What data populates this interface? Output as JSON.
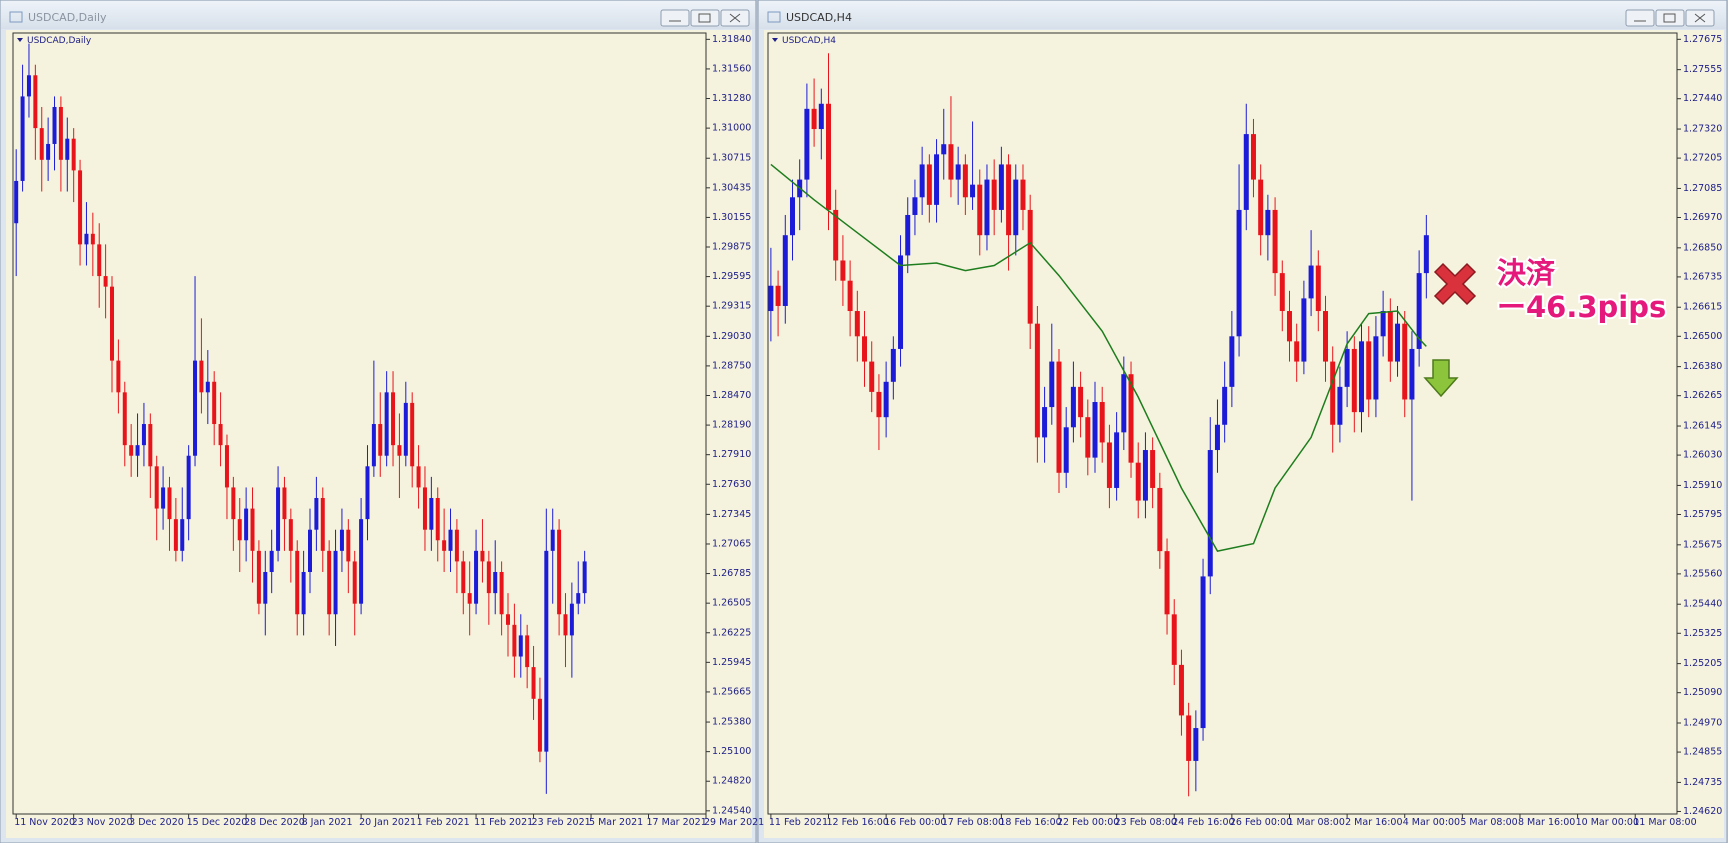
{
  "windows": [
    {
      "title": "USDCAD,Daily"
    },
    {
      "title": "USDCAD,H4"
    }
  ],
  "chart_data": [
    {
      "type": "candlestick",
      "title": "USDCAD,Daily",
      "up_color": "#1b1bd8",
      "down_color": "#e8141c",
      "open": [
        1.301,
        1.305,
        1.313,
        1.315,
        1.31,
        1.307,
        1.3085,
        1.312,
        1.307,
        1.309,
        1.306,
        1.299,
        1.3,
        1.299,
        1.296,
        1.295,
        1.288,
        1.285,
        1.28,
        1.279,
        1.28,
        1.282,
        1.278,
        1.274,
        1.276,
        1.273,
        1.27,
        1.273,
        1.279,
        1.288,
        1.285,
        1.286,
        1.282,
        1.28,
        1.276,
        1.273,
        1.271,
        1.274,
        1.27,
        1.265,
        1.268,
        1.27,
        1.276,
        1.273,
        1.27,
        1.264,
        1.268,
        1.272,
        1.275,
        1.27,
        1.264,
        1.27,
        1.272,
        1.269,
        1.265,
        1.273,
        1.278,
        1.282,
        1.279,
        1.285,
        1.28,
        1.279,
        1.284,
        1.278,
        1.276,
        1.272,
        1.275,
        1.271,
        1.27,
        1.272,
        1.269,
        1.266,
        1.265,
        1.27,
        1.269,
        1.266,
        1.268,
        1.264,
        1.263,
        1.26,
        1.262,
        1.259,
        1.256,
        1.251,
        1.27,
        1.272,
        1.264,
        1.262,
        1.265,
        1.266
      ],
      "high": [
        1.308,
        1.316,
        1.318,
        1.316,
        1.312,
        1.311,
        1.313,
        1.313,
        1.311,
        1.31,
        1.307,
        1.303,
        1.302,
        1.301,
        1.299,
        1.296,
        1.29,
        1.286,
        1.282,
        1.283,
        1.284,
        1.283,
        1.279,
        1.278,
        1.277,
        1.275,
        1.276,
        1.28,
        1.296,
        1.292,
        1.289,
        1.287,
        1.285,
        1.281,
        1.277,
        1.275,
        1.276,
        1.276,
        1.271,
        1.27,
        1.272,
        1.278,
        1.277,
        1.274,
        1.271,
        1.27,
        1.274,
        1.277,
        1.276,
        1.271,
        1.272,
        1.274,
        1.273,
        1.27,
        1.275,
        1.28,
        1.288,
        1.285,
        1.287,
        1.287,
        1.283,
        1.286,
        1.285,
        1.28,
        1.278,
        1.277,
        1.276,
        1.274,
        1.274,
        1.273,
        1.27,
        1.269,
        1.272,
        1.273,
        1.27,
        1.271,
        1.269,
        1.266,
        1.265,
        1.264,
        1.263,
        1.261,
        1.258,
        1.274,
        1.274,
        1.273,
        1.266,
        1.267,
        1.269,
        1.27
      ],
      "low": [
        1.296,
        1.304,
        1.311,
        1.307,
        1.304,
        1.305,
        1.306,
        1.304,
        1.304,
        1.303,
        1.297,
        1.297,
        1.296,
        1.293,
        1.292,
        1.285,
        1.283,
        1.278,
        1.277,
        1.277,
        1.278,
        1.275,
        1.271,
        1.272,
        1.27,
        1.269,
        1.269,
        1.271,
        1.278,
        1.283,
        1.282,
        1.28,
        1.278,
        1.273,
        1.27,
        1.268,
        1.269,
        1.267,
        1.264,
        1.262,
        1.266,
        1.269,
        1.27,
        1.267,
        1.262,
        1.262,
        1.266,
        1.27,
        1.268,
        1.262,
        1.261,
        1.268,
        1.266,
        1.262,
        1.264,
        1.271,
        1.277,
        1.277,
        1.278,
        1.278,
        1.275,
        1.278,
        1.276,
        1.274,
        1.27,
        1.27,
        1.269,
        1.268,
        1.268,
        1.266,
        1.264,
        1.262,
        1.264,
        1.267,
        1.263,
        1.264,
        1.262,
        1.26,
        1.258,
        1.258,
        1.257,
        1.254,
        1.25,
        1.247,
        1.265,
        1.262,
        1.259,
        1.258,
        1.264,
        1.265
      ],
      "close": [
        1.305,
        1.313,
        1.315,
        1.31,
        1.307,
        1.3085,
        1.312,
        1.307,
        1.309,
        1.306,
        1.299,
        1.3,
        1.299,
        1.296,
        1.295,
        1.288,
        1.285,
        1.28,
        1.279,
        1.28,
        1.282,
        1.278,
        1.274,
        1.276,
        1.273,
        1.27,
        1.273,
        1.279,
        1.288,
        1.285,
        1.286,
        1.282,
        1.28,
        1.276,
        1.273,
        1.271,
        1.274,
        1.27,
        1.265,
        1.268,
        1.27,
        1.276,
        1.273,
        1.27,
        1.264,
        1.268,
        1.272,
        1.275,
        1.27,
        1.264,
        1.27,
        1.272,
        1.269,
        1.265,
        1.273,
        1.278,
        1.282,
        1.279,
        1.285,
        1.28,
        1.279,
        1.284,
        1.278,
        1.276,
        1.272,
        1.275,
        1.271,
        1.27,
        1.272,
        1.269,
        1.266,
        1.265,
        1.27,
        1.269,
        1.266,
        1.268,
        1.264,
        1.263,
        1.26,
        1.262,
        1.259,
        1.256,
        1.251,
        1.27,
        1.272,
        1.264,
        1.262,
        1.265,
        1.266,
        1.269
      ],
      "ylim": [
        1.2451,
        1.319
      ],
      "yticks": [
        {
          "value": 1.3184,
          "label": "1.31840"
        },
        {
          "value": 1.3156,
          "label": "1.31560"
        },
        {
          "value": 1.3128,
          "label": "1.31280"
        },
        {
          "value": 1.31,
          "label": "1.31000"
        },
        {
          "value": 1.30715,
          "label": "1.30715"
        },
        {
          "value": 1.30435,
          "label": "1.30435"
        },
        {
          "value": 1.30155,
          "label": "1.30155"
        },
        {
          "value": 1.29875,
          "label": "1.29875"
        },
        {
          "value": 1.29595,
          "label": "1.29595"
        },
        {
          "value": 1.29315,
          "label": "1.29315"
        },
        {
          "value": 1.2903,
          "label": "1.29030"
        },
        {
          "value": 1.2875,
          "label": "1.28750"
        },
        {
          "value": 1.2847,
          "label": "1.28470"
        },
        {
          "value": 1.2819,
          "label": "1.28190"
        },
        {
          "value": 1.2791,
          "label": "1.27910"
        },
        {
          "value": 1.2763,
          "label": "1.27630"
        },
        {
          "value": 1.27345,
          "label": "1.27345"
        },
        {
          "value": 1.27065,
          "label": "1.27065"
        },
        {
          "value": 1.26785,
          "label": "1.26785"
        },
        {
          "value": 1.26505,
          "label": "1.26505"
        },
        {
          "value": 1.26225,
          "label": "1.26225"
        },
        {
          "value": 1.25945,
          "label": "1.25945"
        },
        {
          "value": 1.25665,
          "label": "1.25665"
        },
        {
          "value": 1.2538,
          "label": "1.25380"
        },
        {
          "value": 1.251,
          "label": "1.25100"
        },
        {
          "value": 1.2482,
          "label": "1.24820"
        },
        {
          "value": 1.2454,
          "label": "1.24540"
        }
      ],
      "xlim": [
        -0.5,
        108
      ],
      "xticks": [
        {
          "value": 0,
          "label": "11 Nov 2020"
        },
        {
          "value": 9,
          "label": "23 Nov 2020"
        },
        {
          "value": 18,
          "label": "3 Dec 2020"
        },
        {
          "value": 27,
          "label": "15 Dec 2020"
        },
        {
          "value": 36,
          "label": "28 Dec 2020"
        },
        {
          "value": 45,
          "label": "8 Jan 2021"
        },
        {
          "value": 54,
          "label": "20 Jan 2021"
        },
        {
          "value": 63,
          "label": "1 Feb 2021"
        },
        {
          "value": 72,
          "label": "11 Feb 2021"
        },
        {
          "value": 81,
          "label": "23 Feb 2021"
        },
        {
          "value": 90,
          "label": "5 Mar 2021"
        },
        {
          "value": 99,
          "label": "17 Mar 2021"
        },
        {
          "value": 108,
          "label": "29 Mar 2021"
        }
      ]
    },
    {
      "type": "candlestick",
      "title": "USDCAD,H4",
      "up_color": "#1b1bd8",
      "down_color": "#e8141c",
      "open": [
        1.266,
        1.267,
        1.2662,
        1.269,
        1.2705,
        1.2712,
        1.274,
        1.2732,
        1.2742,
        1.27,
        1.268,
        1.2672,
        1.266,
        1.265,
        1.264,
        1.2628,
        1.2618,
        1.2632,
        1.2645,
        1.2682,
        1.2698,
        1.2705,
        1.2718,
        1.2702,
        1.2722,
        1.2726,
        1.2712,
        1.2718,
        1.2705,
        1.271,
        1.269,
        1.2712,
        1.27,
        1.2718,
        1.269,
        1.2712,
        1.27,
        1.2655,
        1.261,
        1.2622,
        1.264,
        1.2596,
        1.2614,
        1.263,
        1.2618,
        1.2602,
        1.2624,
        1.2608,
        1.259,
        1.2612,
        1.2635,
        1.26,
        1.2585,
        1.2605,
        1.259,
        1.2565,
        1.254,
        1.252,
        1.25,
        1.2482,
        1.2495,
        1.2555,
        1.2605,
        1.2615,
        1.263,
        1.265,
        1.27,
        1.273,
        1.2712,
        1.269,
        1.27,
        1.2675,
        1.266,
        1.2648,
        1.264,
        1.2665,
        1.2678,
        1.266,
        1.264,
        1.2615,
        1.263,
        1.2645,
        1.262,
        1.2648,
        1.2625,
        1.265,
        1.266,
        1.264,
        1.2655,
        1.2625,
        1.2645,
        1.2675
      ],
      "high": [
        1.2685,
        1.2676,
        1.2698,
        1.2712,
        1.272,
        1.275,
        1.2752,
        1.2748,
        1.2762,
        1.2708,
        1.269,
        1.268,
        1.2668,
        1.266,
        1.2648,
        1.2635,
        1.264,
        1.265,
        1.269,
        1.2705,
        1.2712,
        1.2725,
        1.2722,
        1.2728,
        1.274,
        1.2745,
        1.2725,
        1.2722,
        1.2735,
        1.2716,
        1.2718,
        1.272,
        1.2725,
        1.2722,
        1.2718,
        1.2718,
        1.2706,
        1.2662,
        1.263,
        1.2655,
        1.2645,
        1.2622,
        1.264,
        1.2636,
        1.2625,
        1.2632,
        1.263,
        1.2615,
        1.262,
        1.2642,
        1.264,
        1.2608,
        1.2612,
        1.261,
        1.2596,
        1.257,
        1.2546,
        1.2526,
        1.2505,
        1.2502,
        1.2562,
        1.2618,
        1.2625,
        1.264,
        1.266,
        1.2718,
        1.2742,
        1.2736,
        1.2718,
        1.2706,
        1.2705,
        1.268,
        1.2668,
        1.2655,
        1.2672,
        1.2692,
        1.2684,
        1.2666,
        1.2646,
        1.2638,
        1.2652,
        1.265,
        1.2655,
        1.2654,
        1.2658,
        1.2668,
        1.2665,
        1.2662,
        1.266,
        1.2652,
        1.2684,
        1.2698
      ],
      "low": [
        1.2648,
        1.265,
        1.2655,
        1.268,
        1.2692,
        1.2705,
        1.2725,
        1.272,
        1.2692,
        1.2672,
        1.2662,
        1.265,
        1.264,
        1.263,
        1.262,
        1.2605,
        1.261,
        1.2625,
        1.2638,
        1.2675,
        1.269,
        1.2698,
        1.2695,
        1.2695,
        1.2712,
        1.2705,
        1.2702,
        1.2698,
        1.27,
        1.2682,
        1.2684,
        1.269,
        1.2695,
        1.2676,
        1.2682,
        1.2692,
        1.2645,
        1.26,
        1.26,
        1.2615,
        1.2588,
        1.259,
        1.2608,
        1.261,
        1.2595,
        1.2596,
        1.26,
        1.2582,
        1.2585,
        1.2605,
        1.2594,
        1.2578,
        1.2578,
        1.2582,
        1.2558,
        1.2532,
        1.2512,
        1.2492,
        1.2468,
        1.247,
        1.249,
        1.2548,
        1.2596,
        1.2608,
        1.2622,
        1.2642,
        1.2692,
        1.2705,
        1.2682,
        1.268,
        1.2666,
        1.2652,
        1.264,
        1.2632,
        1.2635,
        1.2658,
        1.2652,
        1.2632,
        1.2604,
        1.2608,
        1.2622,
        1.2612,
        1.2612,
        1.2618,
        1.2618,
        1.2642,
        1.2632,
        1.2634,
        1.2618,
        1.2585,
        1.2638,
        1.2665
      ],
      "close": [
        1.267,
        1.2662,
        1.269,
        1.2705,
        1.2712,
        1.274,
        1.2732,
        1.2742,
        1.27,
        1.268,
        1.2672,
        1.266,
        1.265,
        1.264,
        1.2628,
        1.2618,
        1.2632,
        1.2645,
        1.2682,
        1.2698,
        1.2705,
        1.2718,
        1.2702,
        1.2722,
        1.2726,
        1.2712,
        1.2718,
        1.2705,
        1.271,
        1.269,
        1.2712,
        1.27,
        1.2718,
        1.269,
        1.2712,
        1.27,
        1.2655,
        1.261,
        1.2622,
        1.264,
        1.2596,
        1.2614,
        1.263,
        1.2618,
        1.2602,
        1.2624,
        1.2608,
        1.259,
        1.2612,
        1.2635,
        1.26,
        1.2585,
        1.2605,
        1.259,
        1.2565,
        1.254,
        1.252,
        1.25,
        1.2482,
        1.2495,
        1.2555,
        1.2605,
        1.2615,
        1.263,
        1.265,
        1.27,
        1.273,
        1.2712,
        1.269,
        1.27,
        1.2675,
        1.266,
        1.2648,
        1.264,
        1.2665,
        1.2678,
        1.266,
        1.264,
        1.2615,
        1.263,
        1.2645,
        1.262,
        1.2648,
        1.2625,
        1.265,
        1.266,
        1.264,
        1.2655,
        1.2625,
        1.2645,
        1.2675,
        1.269
      ],
      "lines": [
        {
          "color": "#1e7d1e",
          "x": [
            0,
            6,
            12,
            18,
            23,
            27,
            31,
            36,
            40,
            46,
            51,
            57,
            62,
            67,
            70,
            75,
            80,
            83,
            87,
            90,
            91
          ],
          "values": [
            1.2718,
            1.2704,
            1.2691,
            1.2678,
            1.2679,
            1.2676,
            1.2678,
            1.2687,
            1.2674,
            1.2652,
            1.2626,
            1.259,
            1.2565,
            1.2568,
            1.259,
            1.261,
            1.2647,
            1.2659,
            1.266,
            1.2649,
            1.2646
          ]
        }
      ],
      "annotations": [
        {
          "text": "決済"
        },
        {
          "text": "ー46.3pips"
        }
      ],
      "ylim": [
        1.2461,
        1.277
      ],
      "yticks": [
        {
          "value": 1.27675,
          "label": "1.27675"
        },
        {
          "value": 1.27555,
          "label": "1.27555"
        },
        {
          "value": 1.2744,
          "label": "1.27440"
        },
        {
          "value": 1.2732,
          "label": "1.27320"
        },
        {
          "value": 1.27205,
          "label": "1.27205"
        },
        {
          "value": 1.27085,
          "label": "1.27085"
        },
        {
          "value": 1.2697,
          "label": "1.26970"
        },
        {
          "value": 1.2685,
          "label": "1.26850"
        },
        {
          "value": 1.26735,
          "label": "1.26735"
        },
        {
          "value": 1.26615,
          "label": "1.26615"
        },
        {
          "value": 1.265,
          "label": "1.26500"
        },
        {
          "value": 1.2638,
          "label": "1.26380"
        },
        {
          "value": 1.26265,
          "label": "1.26265"
        },
        {
          "value": 1.26145,
          "label": "1.26145"
        },
        {
          "value": 1.2603,
          "label": "1.26030"
        },
        {
          "value": 1.2591,
          "label": "1.25910"
        },
        {
          "value": 1.25795,
          "label": "1.25795"
        },
        {
          "value": 1.25675,
          "label": "1.25675"
        },
        {
          "value": 1.2556,
          "label": "1.25560"
        },
        {
          "value": 1.2544,
          "label": "1.25440"
        },
        {
          "value": 1.25325,
          "label": "1.25325"
        },
        {
          "value": 1.25205,
          "label": "1.25205"
        },
        {
          "value": 1.2509,
          "label": "1.25090"
        },
        {
          "value": 1.2497,
          "label": "1.24970"
        },
        {
          "value": 1.24855,
          "label": "1.24855"
        },
        {
          "value": 1.24735,
          "label": "1.24735"
        },
        {
          "value": 1.2462,
          "label": "1.24620"
        }
      ],
      "xlim": [
        -0.4,
        125.8
      ],
      "xticks": [
        {
          "value": 0,
          "label": "11 Feb 2021"
        },
        {
          "value": 8,
          "label": "12 Feb 16:00"
        },
        {
          "value": 16,
          "label": "16 Feb 00:00"
        },
        {
          "value": 24,
          "label": "17 Feb 08:00"
        },
        {
          "value": 32,
          "label": "18 Feb 16:00"
        },
        {
          "value": 40,
          "label": "22 Feb 00:00"
        },
        {
          "value": 48,
          "label": "23 Feb 08:00"
        },
        {
          "value": 56,
          "label": "24 Feb 16:00"
        },
        {
          "value": 64,
          "label": "26 Feb 00:00"
        },
        {
          "value": 72,
          "label": "1 Mar 08:00"
        },
        {
          "value": 80,
          "label": "2 Mar 16:00"
        },
        {
          "value": 88,
          "label": "4 Mar 00:00"
        },
        {
          "value": 96,
          "label": "5 Mar 08:00"
        },
        {
          "value": 104,
          "label": "8 Mar 16:00"
        },
        {
          "value": 112,
          "label": "10 Mar 00:00"
        },
        {
          "value": 120,
          "label": "11 Mar 08:00"
        }
      ]
    }
  ]
}
